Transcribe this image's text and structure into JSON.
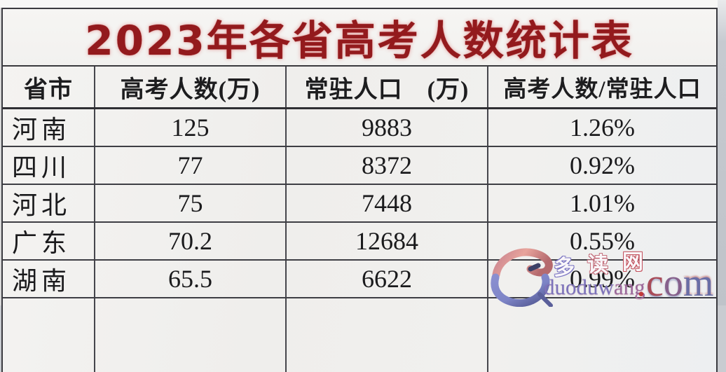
{
  "title": "2023年各省高考人数统计表",
  "title_color": "#931a1d",
  "table": {
    "columns": [
      "省市",
      "高考人数(万)",
      "常驻人口　(万)",
      "高考人数/常驻人口"
    ],
    "rows": [
      [
        "河南",
        "125",
        "9883",
        "1.26%"
      ],
      [
        "四川",
        "77",
        "8372",
        "0.92%"
      ],
      [
        "河北",
        "75",
        "7448",
        "1.01%"
      ],
      [
        "广东",
        "70.2",
        "12684",
        "0.55%"
      ],
      [
        "湖南",
        "65.5",
        "6622",
        "0.99%"
      ]
    ]
  },
  "watermark": {
    "logo": "swoosh-logo",
    "site_chars": [
      "多",
      "读",
      "网"
    ],
    "url_left": "duoduw",
    "url_right": "ang",
    "domain_letters": [
      ".",
      "c",
      "o",
      "m"
    ],
    "colors": {
      "swoosh_top": "#e2938c",
      "swoosh_bottom": "#7d84c6",
      "url": "#7d73bb",
      "domain_red": "#c03a3c",
      "domain_blue": "#6a6ea6"
    }
  },
  "chart_data": {
    "type": "table",
    "title": "2023年各省高考人数统计表",
    "columns": [
      "省市",
      "高考人数(万)",
      "常驻人口 (万)",
      "高考人数/常驻人口"
    ],
    "rows": [
      [
        "河南",
        125,
        9883,
        "1.26%"
      ],
      [
        "四川",
        77,
        8372,
        "0.92%"
      ],
      [
        "河北",
        75,
        7448,
        "1.01%"
      ],
      [
        "广东",
        70.2,
        12684,
        "0.55%"
      ],
      [
        "湖南",
        65.5,
        6622,
        "0.99%"
      ]
    ]
  }
}
